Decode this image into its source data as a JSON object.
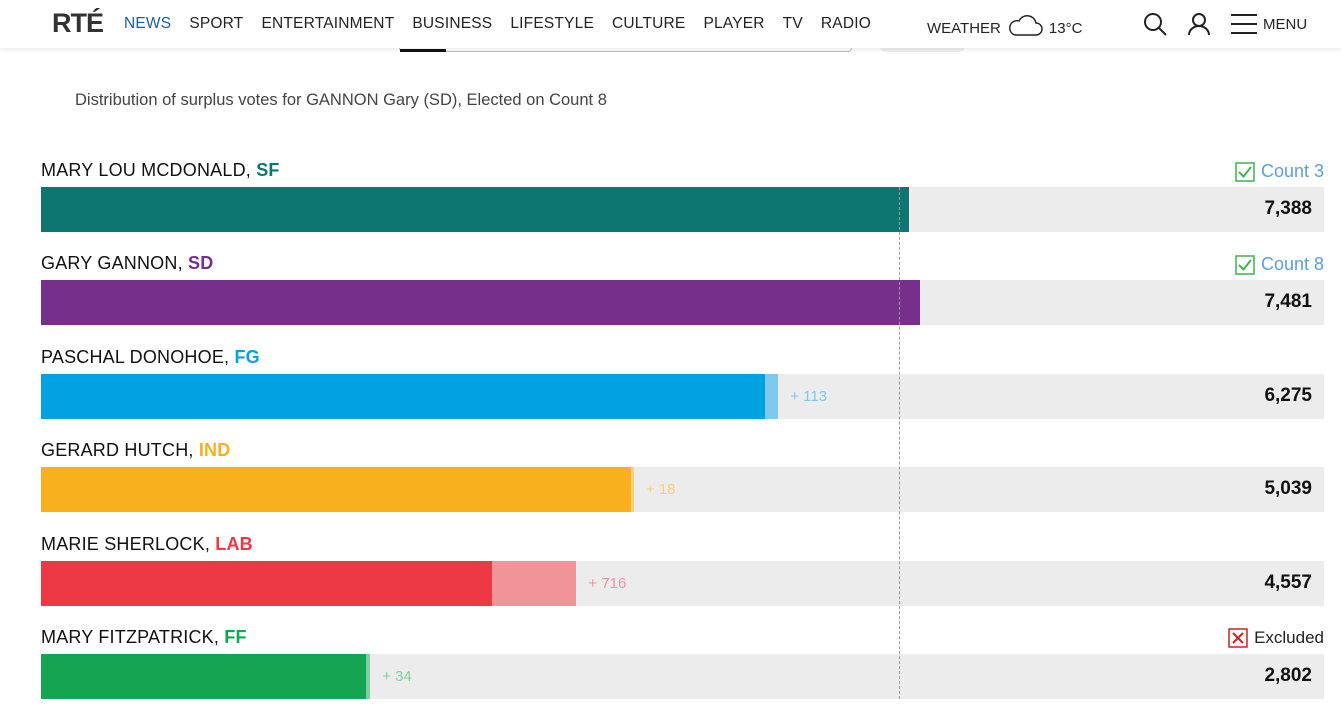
{
  "header": {
    "logo": "RTÉ",
    "nav": [
      "NEWS",
      "SPORT",
      "ENTERTAINMENT",
      "BUSINESS",
      "LIFESTYLE",
      "CULTURE",
      "PLAYER",
      "TV",
      "RADIO"
    ],
    "active_nav": "NEWS",
    "weather_label": "WEATHER",
    "temperature": "13°C",
    "menu_label": "MENU"
  },
  "subtitle": "Distribution of surplus votes for GANNON Gary (SD), Elected on Count 8",
  "candidates": [
    {
      "name": "MARY LOU MCDONALD, ",
      "party": "SF",
      "color": "#0e7670",
      "transfer_color": "#0e7670",
      "status": "Count 3",
      "status_type": "elected",
      "base": 7388,
      "transfer": 0,
      "transfer_label": "",
      "total": "7,388"
    },
    {
      "name": "GARY GANNON, ",
      "party": "SD",
      "color": "#762f8b",
      "transfer_color": "#762f8b",
      "status": "Count 8",
      "status_type": "elected",
      "base": 7481,
      "transfer": 0,
      "transfer_label": "",
      "total": "7,481"
    },
    {
      "name": "PASCHAL DONOHOE, ",
      "party": "FG",
      "color": "#02a1e2",
      "transfer_color": "#7ec9ee",
      "status": "",
      "status_type": "none",
      "base": 6162,
      "transfer": 113,
      "transfer_label": "+ 113",
      "total": "6,275"
    },
    {
      "name": "GERARD HUTCH, ",
      "party": "IND",
      "color": "#f8b01c",
      "transfer_color": "#f9cf7a",
      "status": "",
      "status_type": "none",
      "base": 5021,
      "transfer": 18,
      "transfer_label": "+ 18",
      "total": "5,039"
    },
    {
      "name": "MARIE SHERLOCK, ",
      "party": "LAB",
      "color": "#ed3946",
      "transfer_color": "#f09498",
      "status": "",
      "status_type": "none",
      "base": 3841,
      "transfer": 716,
      "transfer_label": "+ 716",
      "total": "4,557"
    },
    {
      "name": "MARY FITZPATRICK, ",
      "party": "FF",
      "color": "#15a552",
      "transfer_color": "#7fcf9c",
      "status": "Excluded",
      "status_type": "excluded",
      "base": 2768,
      "transfer": 34,
      "transfer_label": "+ 34",
      "total": "2,802"
    }
  ],
  "scale_max": 10920,
  "quota": 7306
}
